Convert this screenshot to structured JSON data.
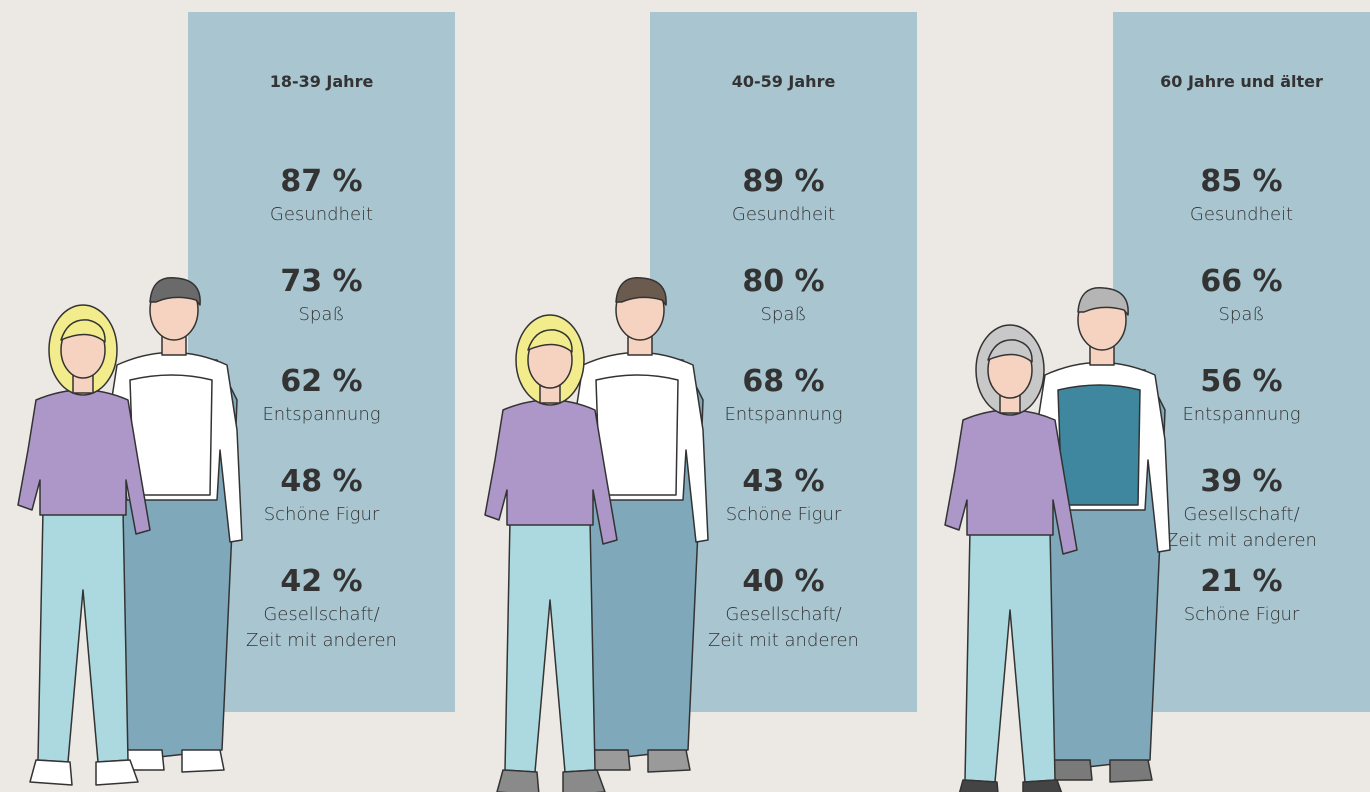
{
  "panels": [
    {
      "title": "18-39 Jahre",
      "items": [
        {
          "value": "87 %",
          "label": "Gesundheit"
        },
        {
          "value": "73 %",
          "label": "Spaß"
        },
        {
          "value": "62 %",
          "label": "Entspannung"
        },
        {
          "value": "48 %",
          "label": "Schöne Figur"
        },
        {
          "value": "42 %",
          "label": "Gesellschaft/\nZeit mit anderen"
        }
      ]
    },
    {
      "title": "40-59 Jahre",
      "items": [
        {
          "value": "89 %",
          "label": "Gesundheit"
        },
        {
          "value": "80 %",
          "label": "Spaß"
        },
        {
          "value": "68 %",
          "label": "Entspannung"
        },
        {
          "value": "43 %",
          "label": "Schöne Figur"
        },
        {
          "value": "40 %",
          "label": "Gesellschaft/\nZeit mit anderen"
        }
      ]
    },
    {
      "title": "60 Jahre und älter",
      "items": [
        {
          "value": "85 %",
          "label": "Gesundheit"
        },
        {
          "value": "66 %",
          "label": "Spaß"
        },
        {
          "value": "56 %",
          "label": "Entspannung"
        },
        {
          "value": "39 %",
          "label": "Gesellschaft/\nZeit mit anderen"
        },
        {
          "value": "21 %",
          "label": "Schöne Figur"
        }
      ]
    }
  ]
}
